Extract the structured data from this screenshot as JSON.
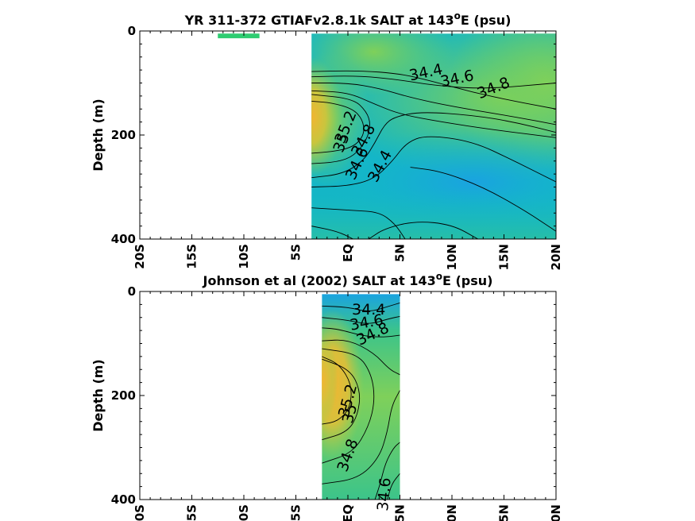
{
  "chart_data": [
    {
      "type": "contour",
      "title": "YR 311-372 GTIAFv2.8.1k SALT at 143",
      "title_sup": "o",
      "title_tail": "E (psu)",
      "xlabel": "",
      "ylabel": "Depth (m)",
      "xlim": [
        -20,
        20
      ],
      "ylim": [
        0,
        400
      ],
      "y_reversed": true,
      "x_ticks": [
        -20,
        -15,
        -10,
        -5,
        0,
        5,
        10,
        15,
        20
      ],
      "x_tick_labels": [
        "20S",
        "15S",
        "10S",
        "5S",
        "EQ",
        "5N",
        "10N",
        "15N",
        "20N"
      ],
      "y_ticks": [
        0,
        200,
        400
      ],
      "y_tick_labels": [
        "0",
        "200",
        "400"
      ],
      "data_extent": {
        "x": [
          -3.5,
          20
        ],
        "y": [
          5,
          400
        ]
      },
      "small_patch": {
        "x": [
          -12.5,
          -8.5
        ],
        "y": [
          5,
          14
        ],
        "color": "#2ecc71"
      },
      "contour_labels": [
        {
          "text": "34.4",
          "x": 7.5,
          "y": 80,
          "angle": -12
        },
        {
          "text": "34.6",
          "x": 10.5,
          "y": 92,
          "angle": -12
        },
        {
          "text": "34.8",
          "x": 14.0,
          "y": 110,
          "angle": -22
        },
        {
          "text": "35.2",
          "x": -0.2,
          "y": 185,
          "angle": -68
        },
        {
          "text": "35",
          "x": -0.6,
          "y": 215,
          "angle": -68
        },
        {
          "text": "34.8",
          "x": 1.5,
          "y": 210,
          "angle": -62
        },
        {
          "text": "34.6",
          "x": 0.9,
          "y": 255,
          "angle": -65
        },
        {
          "text": "34.4",
          "x": 3.1,
          "y": 260,
          "angle": -62
        }
      ],
      "colormap": [
        "#1aa3e0",
        "#12b9c8",
        "#3cc48a",
        "#7fd05a",
        "#c9c53e",
        "#f2b531"
      ]
    },
    {
      "type": "contour",
      "title": "Johnson et al (2002) SALT at 143",
      "title_sup": "o",
      "title_tail": "E (psu)",
      "xlabel": "",
      "ylabel": "Depth (m)",
      "xlim": [
        -20,
        20
      ],
      "ylim": [
        0,
        400
      ],
      "y_reversed": true,
      "x_ticks": [
        -20,
        -15,
        -10,
        -5,
        0,
        5,
        10,
        15,
        20
      ],
      "x_tick_labels": [
        "20S",
        "15S",
        "10S",
        "5S",
        "EQ",
        "5N",
        "10N",
        "15N",
        "20N"
      ],
      "y_ticks": [
        0,
        200,
        400
      ],
      "y_tick_labels": [
        "0",
        "200",
        "400"
      ],
      "data_extent": {
        "x": [
          -2.5,
          5
        ],
        "y": [
          5,
          400
        ]
      },
      "contour_labels": [
        {
          "text": "34.4",
          "x": 2.0,
          "y": 35,
          "angle": 0
        },
        {
          "text": "34.6",
          "x": 1.8,
          "y": 60,
          "angle": -10
        },
        {
          "text": "34.8",
          "x": 2.4,
          "y": 82,
          "angle": -25
        },
        {
          "text": "35.2",
          "x": 0.0,
          "y": 210,
          "angle": -75
        },
        {
          "text": "35",
          "x": 0.2,
          "y": 235,
          "angle": -75
        },
        {
          "text": "34.8",
          "x": 0.0,
          "y": 315,
          "angle": -70
        },
        {
          "text": "34.6",
          "x": 3.5,
          "y": 390,
          "angle": -85
        }
      ],
      "colormap": [
        "#1aa3e0",
        "#12b9c8",
        "#3cc48a",
        "#7fd05a",
        "#c9c53e",
        "#f2b531"
      ]
    }
  ]
}
